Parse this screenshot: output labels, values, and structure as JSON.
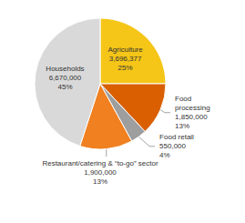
{
  "chart_data": {
    "type": "pie",
    "categories": [
      "Agriculture",
      "Food\nprocessing",
      "Food retail",
      "Restaurant/catering & “to-go” sector",
      "Households"
    ],
    "values": [
      25,
      13,
      4,
      13,
      45
    ],
    "value_labels": [
      "25%",
      "13%",
      "4%",
      "13%",
      "45%"
    ],
    "amounts": [
      3696377,
      1850000,
      550000,
      1900000,
      6670000
    ],
    "colors": [
      "#F5C518",
      "#D95F00",
      "#9E9E9E",
      "#F08020",
      "#D9D9D9"
    ],
    "data_labels": true
  }
}
